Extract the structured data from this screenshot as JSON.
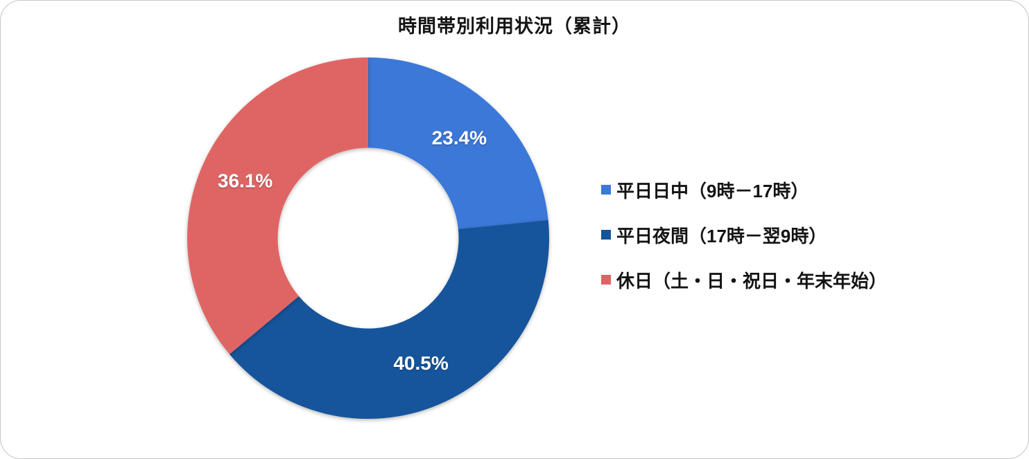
{
  "chart_data": {
    "type": "pie",
    "subtype": "donut",
    "title": "時間帯別利用状況（累計）",
    "categories": [
      "平日日中（9時－17時）",
      "平日夜間（17時－翌9時）",
      "休日（土・日・祝日・年末年始）"
    ],
    "values": [
      23.4,
      40.5,
      36.1
    ],
    "labels": [
      "23.4%",
      "40.5%",
      "36.1%"
    ],
    "colors": [
      "#3B78D8",
      "#15549B",
      "#DF6565"
    ],
    "unit": "%",
    "legend_position": "right",
    "donut_hole_ratio": 0.5,
    "start_angle_deg": 0,
    "direction": "clockwise",
    "data_label_color": "#ffffff"
  }
}
